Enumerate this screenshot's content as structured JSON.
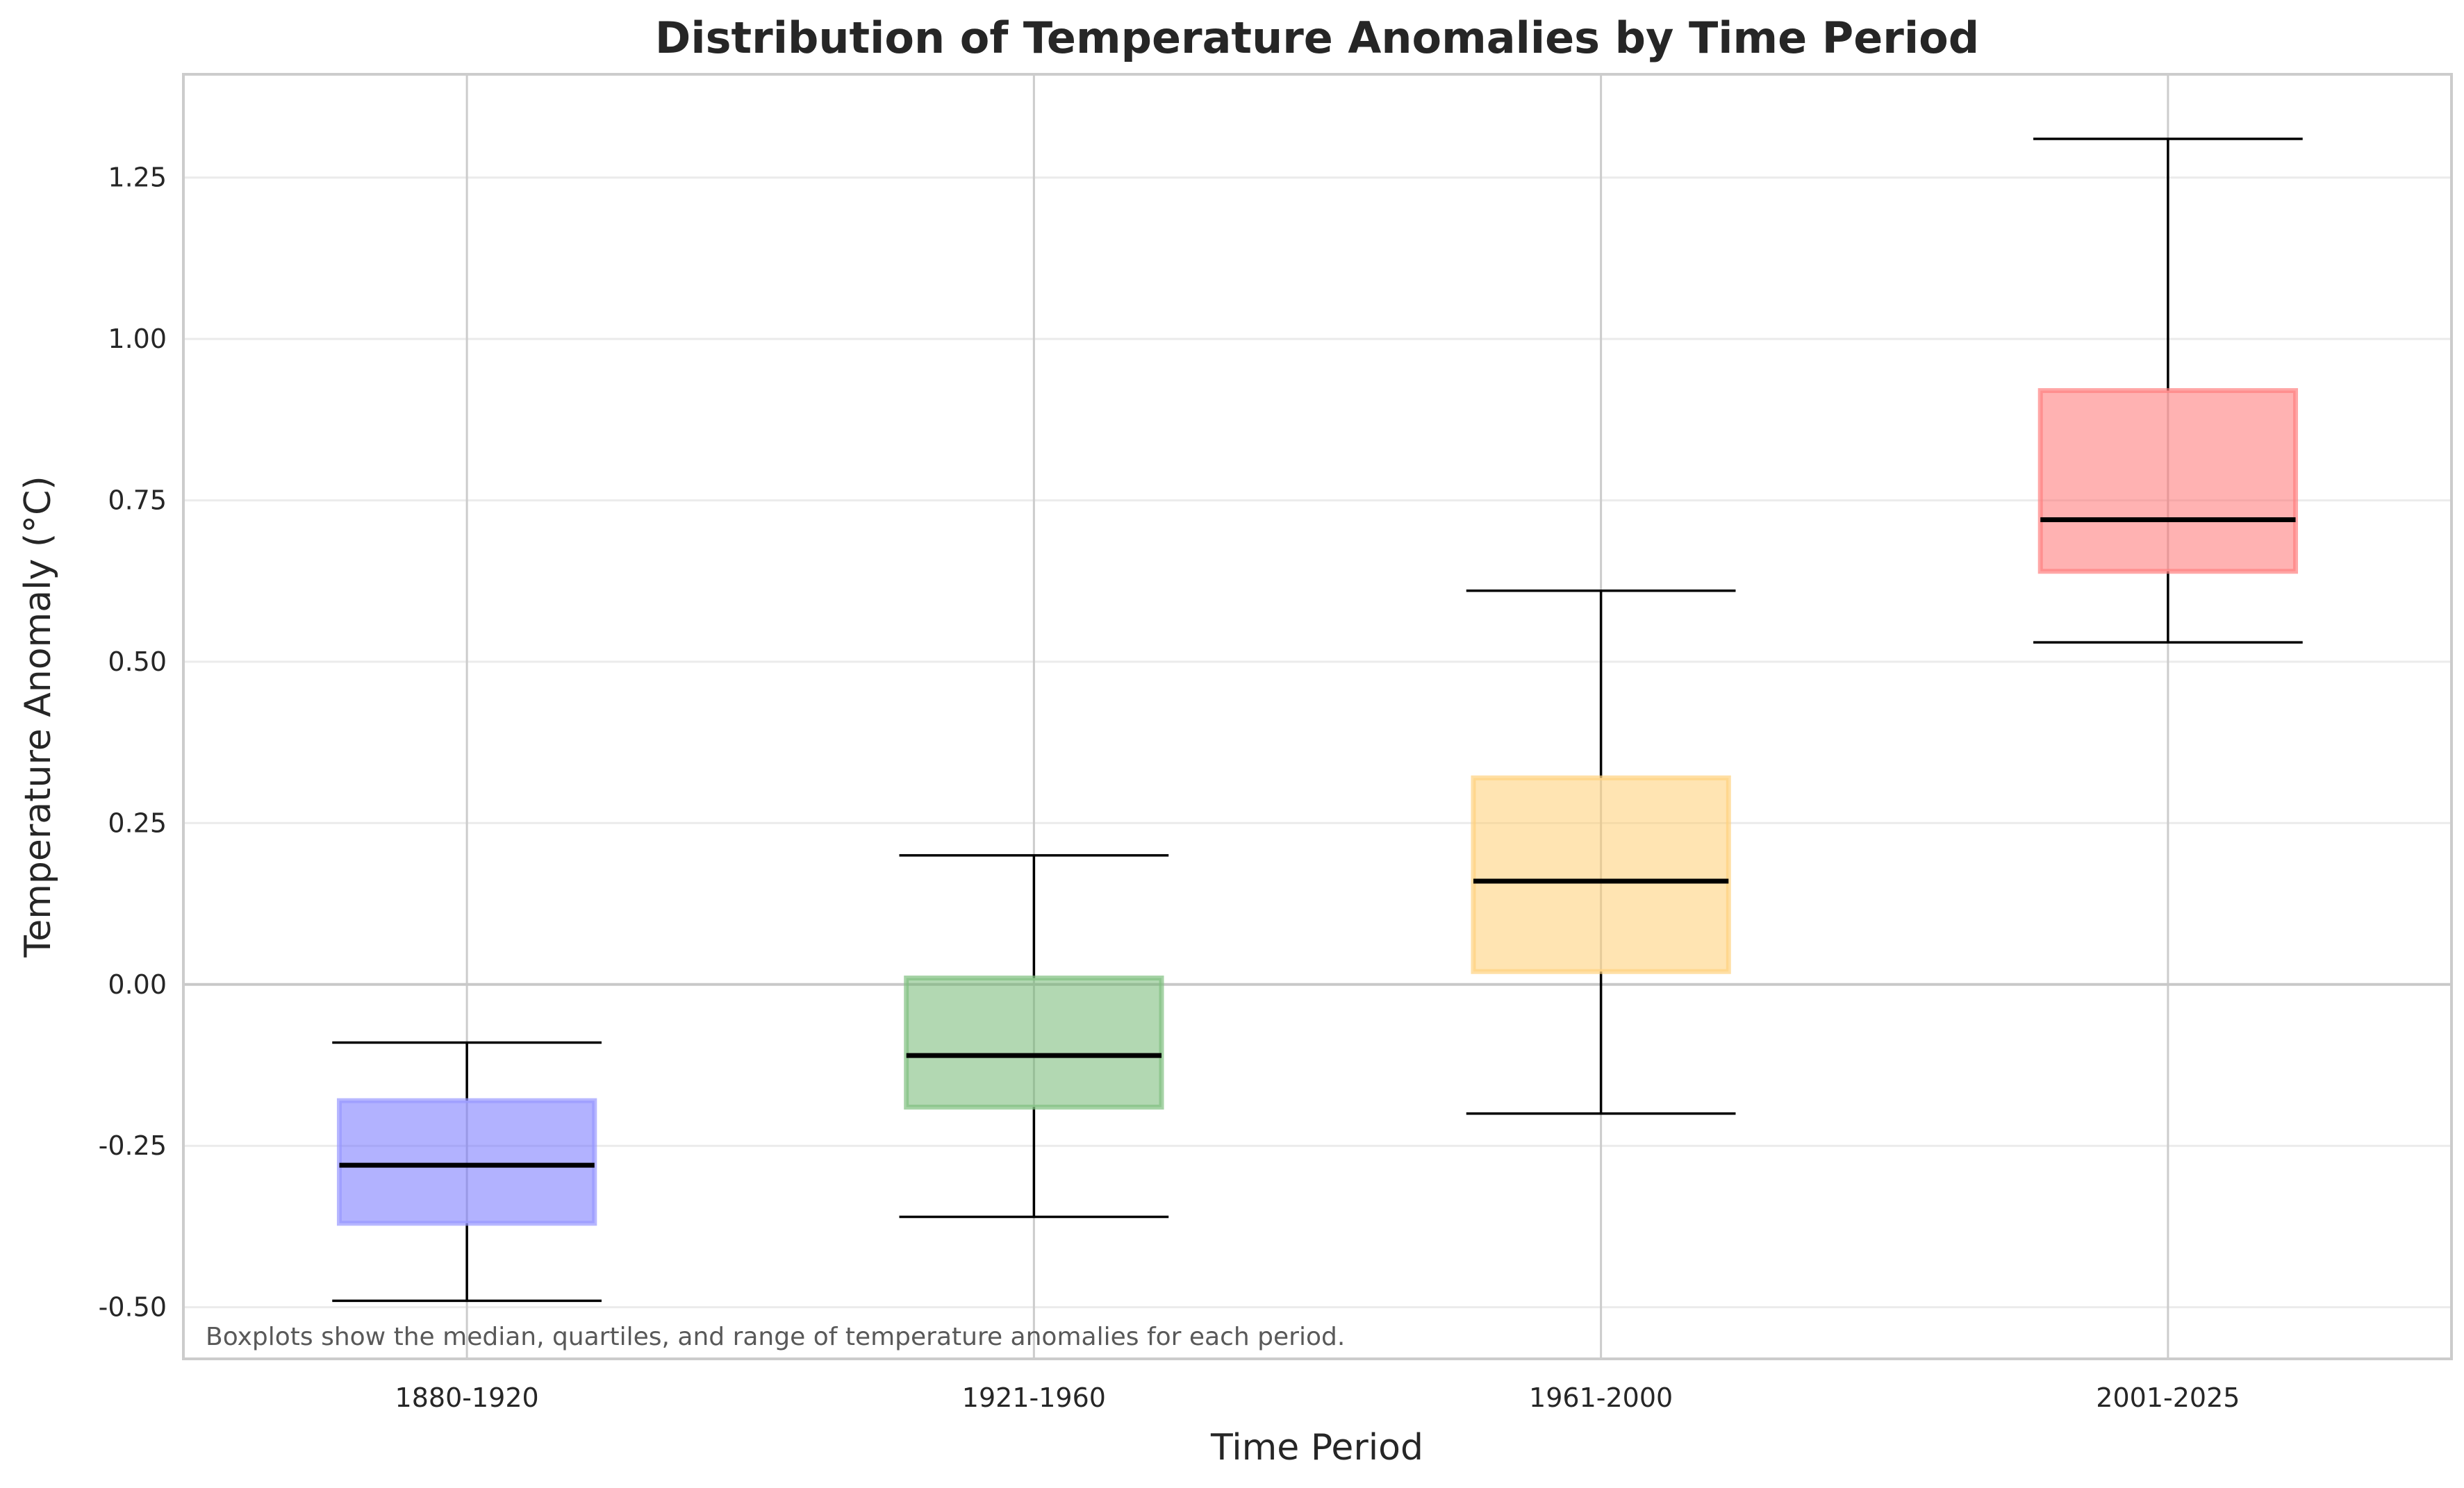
{
  "chart_data": {
    "type": "box",
    "title": "Distribution of Temperature Anomalies by Time Period",
    "xlabel": "Time Period",
    "ylabel": "Temperature Anomaly (°C)",
    "annotation": "Boxplots show the median, quartiles, and range of temperature anomalies for each period.",
    "ylim": [
      -0.58,
      1.41
    ],
    "yticks": [
      -0.5,
      -0.25,
      0.0,
      0.25,
      0.5,
      0.75,
      1.0,
      1.25
    ],
    "ytick_labels": [
      "-0.50",
      "-0.25",
      "0.00",
      "0.25",
      "0.50",
      "0.75",
      "1.00",
      "1.25"
    ],
    "grid": true,
    "zero_line": true,
    "categories": [
      "1880-1920",
      "1921-1960",
      "1961-2000",
      "2001-2025"
    ],
    "boxes": [
      {
        "category": "1880-1920",
        "min": -0.49,
        "q1": -0.37,
        "median": -0.28,
        "q3": -0.18,
        "max": -0.09,
        "color": "#6666ff",
        "edge": "#9999ff"
      },
      {
        "category": "1921-1960",
        "min": -0.36,
        "q1": -0.19,
        "median": -0.11,
        "q3": 0.01,
        "max": 0.2,
        "color": "#66b266",
        "edge": "#80c080"
      },
      {
        "category": "1961-2000",
        "min": -0.2,
        "q1": 0.02,
        "median": 0.16,
        "q3": 0.32,
        "max": 0.61,
        "color": "#ffc966",
        "edge": "#ffd27f"
      },
      {
        "category": "2001-2025",
        "min": 0.53,
        "q1": 0.64,
        "median": 0.72,
        "q3": 0.92,
        "max": 1.31,
        "color": "#ff6666",
        "edge": "#ff8080"
      }
    ]
  }
}
